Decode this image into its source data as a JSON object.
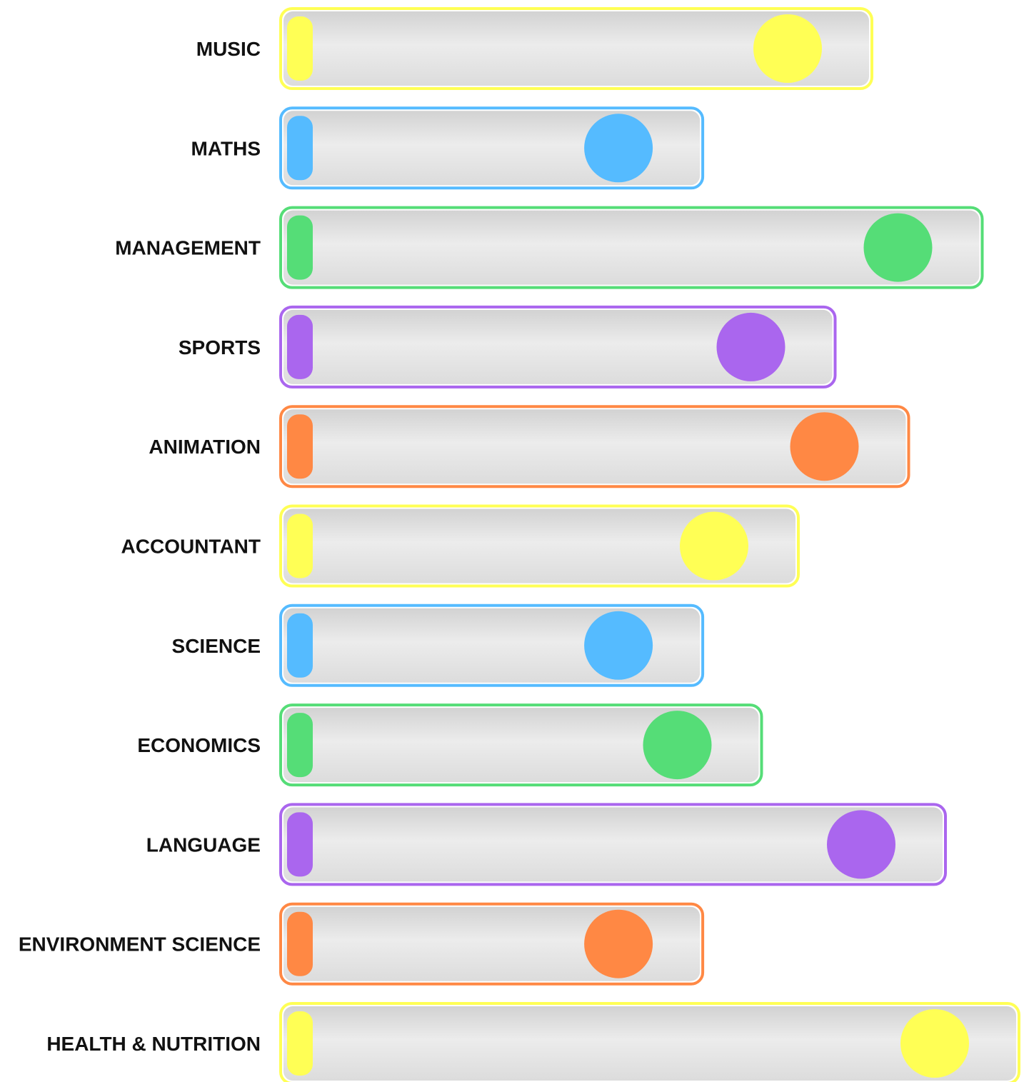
{
  "chart_data": {
    "type": "bar",
    "categories": [
      "MUSIC",
      "MATHS",
      "MANAGEMENT",
      "SPORTS",
      "ANIMATION",
      "ACCOUNTANT",
      "SCIENCE",
      "ECONOMICS",
      "LANGUAGE",
      "ENVIRONMENT SCIENCE",
      "HEALTH & NUTRITION"
    ],
    "values": [
      80,
      57,
      95,
      75,
      85,
      70,
      57,
      65,
      90,
      57,
      100
    ],
    "colors": [
      "#ffff55",
      "#55bbff",
      "#55dd77",
      "#aa66ee",
      "#ff8844",
      "#ffff55",
      "#55bbff",
      "#55dd77",
      "#aa66ee",
      "#ff8844",
      "#ffff55"
    ],
    "title": "",
    "xlabel": "",
    "ylabel": "",
    "xlim": [
      0,
      100
    ],
    "grid": false,
    "legend": "none"
  }
}
